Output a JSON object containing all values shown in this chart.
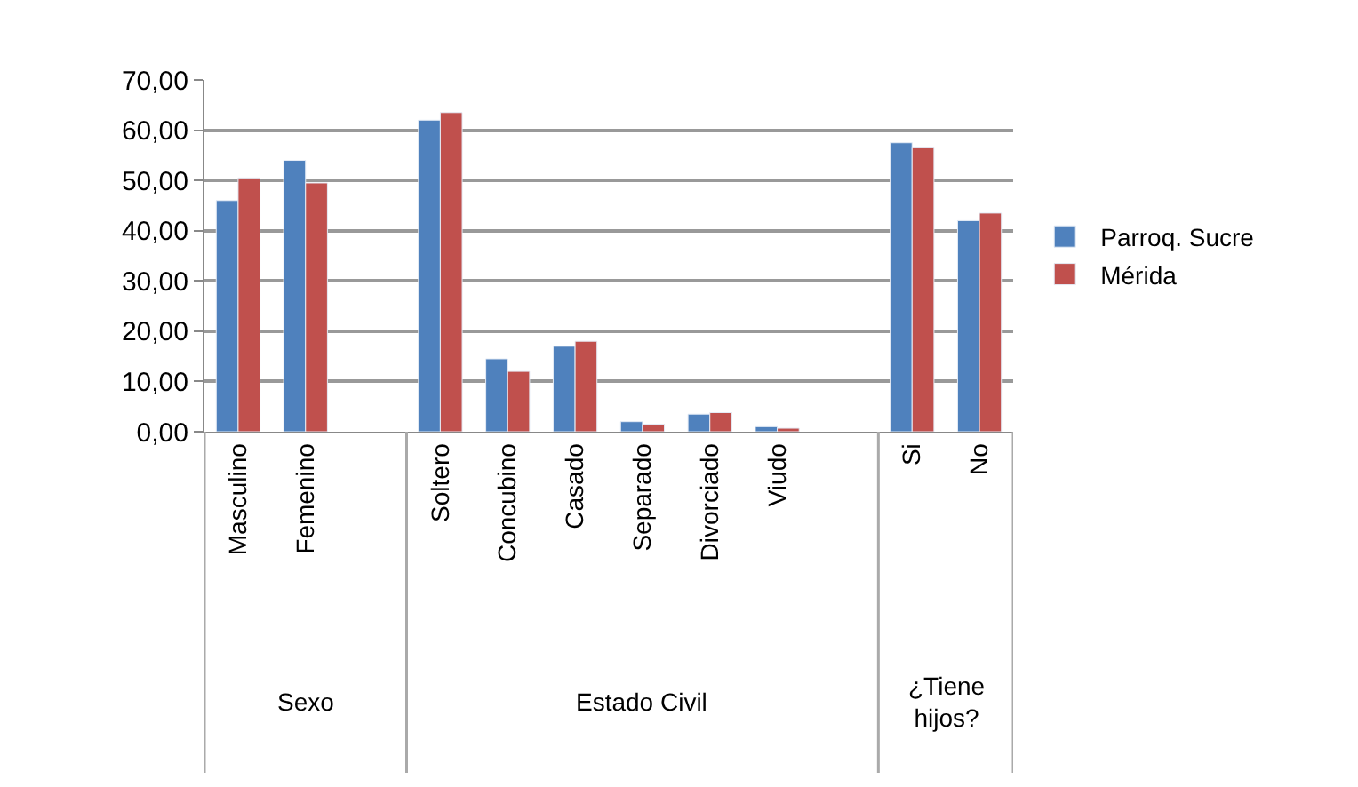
{
  "chart_data": {
    "type": "bar",
    "categories": [
      "Masculino",
      "Femenino",
      null,
      "Soltero",
      "Concubino",
      "Casado",
      "Separado",
      "Divorciado",
      "Viudo",
      null,
      "Si",
      "No"
    ],
    "series": [
      {
        "name": "Parroq. Sucre",
        "color": "#4f81bd",
        "values": [
          46,
          54,
          null,
          62,
          14.5,
          17,
          2,
          3.5,
          1,
          null,
          57.5,
          42
        ]
      },
      {
        "name": "Mérida",
        "color": "#c0504d",
        "values": [
          50.5,
          49.5,
          null,
          63.5,
          12,
          18,
          1.5,
          3.8,
          0.7,
          null,
          56.5,
          43.5
        ]
      }
    ],
    "ylim": [
      0,
      70
    ],
    "yticks": [
      {
        "value": 0,
        "label": "0,00"
      },
      {
        "value": 10,
        "label": "10,00"
      },
      {
        "value": 20,
        "label": "20,00"
      },
      {
        "value": 30,
        "label": "30,00"
      },
      {
        "value": 40,
        "label": "40,00"
      },
      {
        "value": 50,
        "label": "50,00"
      },
      {
        "value": 60,
        "label": "60,00"
      },
      {
        "value": 70,
        "label": "70,00"
      }
    ],
    "annotations": [
      "Sexo",
      "Estado Civil",
      "¿Tiene\nhijos?"
    ],
    "grid": "y",
    "legend": "right"
  }
}
